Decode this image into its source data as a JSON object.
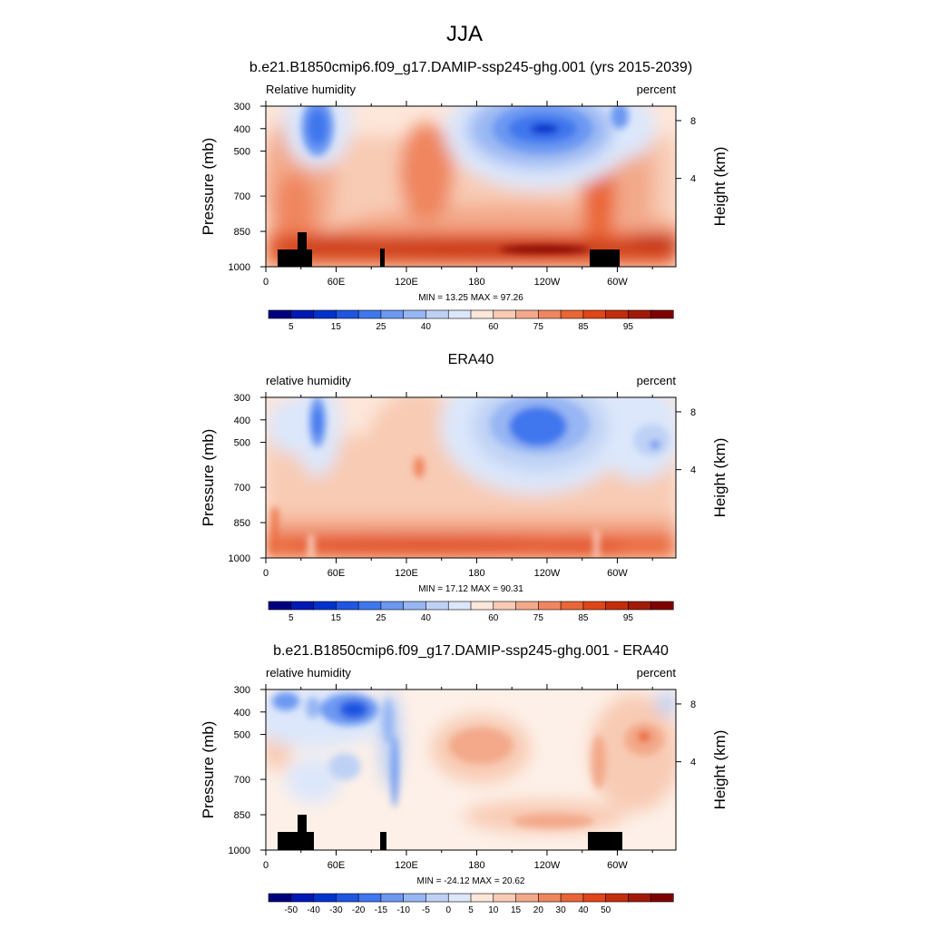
{
  "figure": {
    "title": "JJA"
  },
  "colors": {
    "blue_scale": [
      "#00007f",
      "#0018b4",
      "#0033cc",
      "#1f55e0",
      "#3f77ee",
      "#6c98f2",
      "#97b6f3",
      "#bed1f5",
      "#dce7fb"
    ],
    "red_scale": [
      "#fde6da",
      "#f8cbb4",
      "#f3a98a",
      "#ef865f",
      "#ea6636",
      "#e04617",
      "#c42d0c",
      "#a11a08",
      "#7f0000"
    ],
    "topography": "#000000"
  },
  "chart_data": [
    {
      "type": "heatmap",
      "title": "b.e21.B1850cmip6.f09_g17.DAMIP-ssp245-ghg.001 (yrs 2015-2039)",
      "left_label": "Relative humidity",
      "right_label": "percent",
      "ylabel": "Pressure (mb)",
      "ylabel_right": "Height (km)",
      "x_ticks": [
        "0",
        "60E",
        "120E",
        "180",
        "120W",
        "60W"
      ],
      "y_ticks": [
        "300",
        "400",
        "500",
        "700",
        "850",
        "1000"
      ],
      "y_right_ticks": [
        "8",
        "4"
      ],
      "stats": "MIN =  13.25  MAX =  97.26",
      "colorbar_labels": [
        "5",
        "15",
        "25",
        "40",
        "60",
        "75",
        "85",
        "95"
      ],
      "min": 13.25,
      "max": 97.26
    },
    {
      "type": "heatmap",
      "title": "ERA40",
      "left_label": "relative humidity",
      "right_label": "percent",
      "ylabel": "Pressure (mb)",
      "ylabel_right": "Height (km)",
      "x_ticks": [
        "0",
        "60E",
        "120E",
        "180",
        "120W",
        "60W"
      ],
      "y_ticks": [
        "300",
        "400",
        "500",
        "700",
        "850",
        "1000"
      ],
      "y_right_ticks": [
        "8",
        "4"
      ],
      "stats": "MIN =  17.12  MAX =  90.31",
      "colorbar_labels": [
        "5",
        "15",
        "25",
        "40",
        "60",
        "75",
        "85",
        "95"
      ],
      "min": 17.12,
      "max": 90.31
    },
    {
      "type": "heatmap",
      "title": "b.e21.B1850cmip6.f09_g17.DAMIP-ssp245-ghg.001 - ERA40",
      "left_label": "relative humidity",
      "right_label": "percent",
      "ylabel": "Pressure (mb)",
      "ylabel_right": "Height (km)",
      "x_ticks": [
        "0",
        "60E",
        "120E",
        "180",
        "120W",
        "60W"
      ],
      "y_ticks": [
        "300",
        "400",
        "500",
        "700",
        "850",
        "1000"
      ],
      "y_right_ticks": [
        "8",
        "4"
      ],
      "stats": "MIN = -24.12  MAX =  20.62",
      "colorbar_labels": [
        "-50",
        "-40",
        "-30",
        "-20",
        "-15",
        "-10",
        "-5",
        "0",
        "5",
        "10",
        "15",
        "20",
        "30",
        "40",
        "50"
      ],
      "min": -24.12,
      "max": 20.62
    }
  ]
}
